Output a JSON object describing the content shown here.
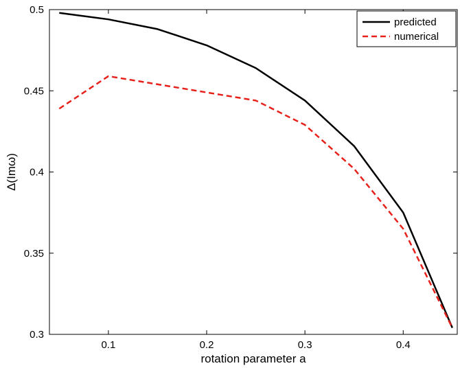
{
  "chart_data": {
    "type": "line",
    "xlabel": "rotation parameter a",
    "ylabel": "Δ(Imω)",
    "xlim": [
      0.04,
      0.455
    ],
    "ylim": [
      0.3,
      0.5
    ],
    "xticks": [
      0.1,
      0.2,
      0.3,
      0.4
    ],
    "yticks": [
      0.3,
      0.35,
      0.4,
      0.45,
      0.5
    ],
    "xtick_labels": [
      "0.1",
      "0.2",
      "0.3",
      "0.4"
    ],
    "ytick_labels": [
      "0.3",
      "0.35",
      "0.4",
      "0.45",
      "0.5"
    ],
    "grid": false,
    "legend_position": "top-right",
    "series": [
      {
        "name": "predicted",
        "color": "#000000",
        "dash": "solid",
        "x": [
          0.05,
          0.1,
          0.15,
          0.2,
          0.25,
          0.3,
          0.35,
          0.4,
          0.45
        ],
        "y": [
          0.498,
          0.494,
          0.488,
          0.478,
          0.464,
          0.444,
          0.416,
          0.375,
          0.304
        ]
      },
      {
        "name": "numerical",
        "color": "#e8201a",
        "dash": "dashed",
        "x": [
          0.05,
          0.1,
          0.15,
          0.2,
          0.25,
          0.3,
          0.35,
          0.4,
          0.45
        ],
        "y": [
          0.439,
          0.459,
          0.454,
          0.449,
          0.444,
          0.429,
          0.402,
          0.365,
          0.304
        ]
      }
    ]
  }
}
